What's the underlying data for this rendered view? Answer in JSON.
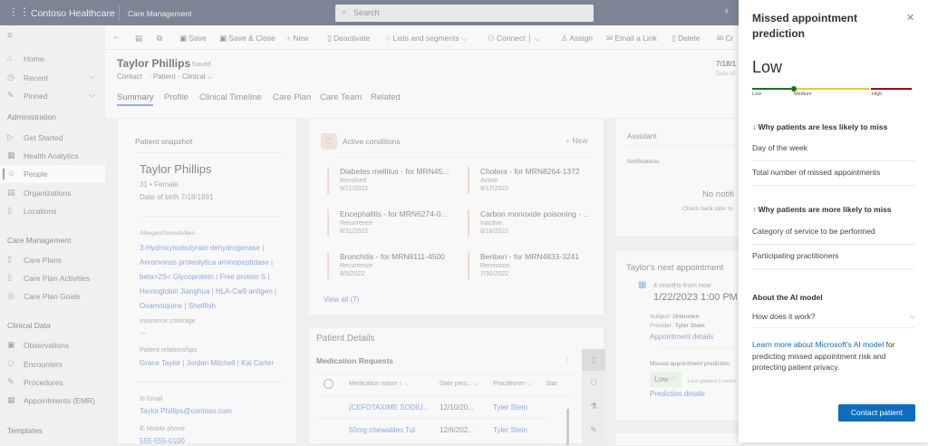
{
  "topbar": {
    "app_name": "Contoso Healthcare",
    "module": "Care Management",
    "search_placeholder": "Search"
  },
  "sidebar": {
    "top": [
      {
        "label": "Home",
        "icon": "home-icon"
      },
      {
        "label": "Recent",
        "icon": "clock-icon"
      },
      {
        "label": "Pinned",
        "icon": "pin-icon"
      }
    ],
    "sections": [
      {
        "title": "Administration",
        "items": [
          {
            "label": "Get Started"
          },
          {
            "label": "Health Analytics"
          },
          {
            "label": "People",
            "selected": true
          },
          {
            "label": "Organizations"
          },
          {
            "label": "Locations"
          }
        ]
      },
      {
        "title": "Care Management",
        "items": [
          {
            "label": "Care Plans"
          },
          {
            "label": "Care Plan Activities"
          },
          {
            "label": "Care Plan Goals"
          }
        ]
      },
      {
        "title": "Clinical Data",
        "items": [
          {
            "label": "Observations"
          },
          {
            "label": "Encounters"
          },
          {
            "label": "Procedures"
          },
          {
            "label": "Appointments (EMR)"
          }
        ]
      },
      {
        "title": "Templates",
        "items": []
      }
    ]
  },
  "commands": [
    "Save",
    "Save & Close",
    "New",
    "Deactivate",
    "Lists and segments",
    "Connect",
    "Assign",
    "Email a Link",
    "Delete",
    "Cr"
  ],
  "header": {
    "name": "Taylor Phillips",
    "saved": "- Saved",
    "entity": "Contact",
    "form": "Patient - Clinical",
    "dob_value": "7/18/1",
    "dob_label": "Date of"
  },
  "tabs": [
    "Summary",
    "Profile",
    "Clinical Timeline",
    "Care Plan",
    "Care Team",
    "Related"
  ],
  "snapshot": {
    "title": "Patient snapshot",
    "name": "Taylor Phillips",
    "age_gender": "31 • Female",
    "dob": "Date of birth 7/18/1991",
    "allergies_label": "Allergies/Sensitivities",
    "allergies": [
      [
        "3-Hydroxyisobutyrate dehydrogenase"
      ],
      [
        "Aeromonas proteolytica aminopeptidase"
      ],
      [
        "beta>2S< Glycoprotein",
        "Free protein S"
      ],
      [
        "Hemoglobin Jianghua",
        "HLA-Cw9 antigen"
      ],
      [
        "Oxamniquine",
        "Shellfish"
      ]
    ],
    "insurance_label": "Insurance coverage",
    "insurance_value": "---",
    "relationships_label": "Patient relationships",
    "relationships": [
      "Grace Taylor",
      "Jordan Mitchell",
      "Kai Carter"
    ],
    "email_label": "Email",
    "email": "Taylor.Phillips@contoso.com",
    "phone_label": "Mobile phone",
    "phone": "555-555-0100"
  },
  "conditions": {
    "title": "Active conditions",
    "new_label": "New",
    "view_all": "View all (7)",
    "items": [
      {
        "name": "Diabetes mellitus - for MRN45...",
        "status": "Resolved",
        "date": "9/21/2022"
      },
      {
        "name": "Cholera - for MRN8264-1372",
        "status": "Active",
        "date": "9/17/2022"
      },
      {
        "name": "Encephalitis - for MRN6274-0...",
        "status": "Recurrence",
        "date": "8/31/2022"
      },
      {
        "name": "Carbon monoxide poisoning - ...",
        "status": "Inactive",
        "date": "8/16/2022"
      },
      {
        "name": "Bronchitis - for MRN8111-4500",
        "status": "Recurrence",
        "date": "8/5/2022"
      },
      {
        "name": "Beriberi - for MRN4833-3241",
        "status": "Remission",
        "date": "7/30/2022"
      }
    ]
  },
  "details": {
    "title": "Patient Details",
    "sub": "Medication Requests",
    "columns": [
      "Medication name",
      "Date pres...",
      "Practitioner",
      "Stat"
    ],
    "rows": [
      [
        "(CEFOTAXIME SODIU...",
        "12/10/20...",
        "Tyler Stein"
      ],
      [
        "50mg chewables Tul",
        "12/6/202...",
        "Tyler Stein"
      ]
    ]
  },
  "assistant": {
    "title": "Assistant",
    "notifications": "Notifications",
    "empty_title": "No notifi",
    "empty_sub": "Check back later to"
  },
  "appointment": {
    "title": "Taylor's next appointment",
    "relative": "4 months from now",
    "datetime": "1/22/2023 1:00 PM",
    "subject_label": "Subject:",
    "subject": "Unknown",
    "provider_label": "Provider:",
    "provider": "Tyler Stein",
    "details_link": "Appointment details",
    "prediction_label": "Missed appointment prediction",
    "prediction": "Low",
    "updated": "Last updated 3 weeks",
    "prediction_link": "Prediction details"
  },
  "panel": {
    "title": "Missed appointment prediction",
    "level": "Low",
    "scale_labels": [
      "Low",
      "Medium",
      "High"
    ],
    "scale_value_pct": 30,
    "colors": {
      "low": "#107c10",
      "medium": "#eccb2d",
      "high": "#a80000",
      "primary": "#0f6cbd"
    },
    "less_title": "Why patients are less likely to miss",
    "less_items": [
      "Day of the week",
      "Total number of missed appointments"
    ],
    "more_title": "Why patients are more likely to miss",
    "more_items": [
      "Category of service to be performed",
      "Participating practitioners"
    ],
    "about_title": "About the AI model",
    "how": "How does it work?",
    "learn_link": "Learn more about Microsoft's AI model",
    "learn_rest": " for predicting missed appointment risk and protecting patient privacy.",
    "contact_button": "Contact patient"
  }
}
